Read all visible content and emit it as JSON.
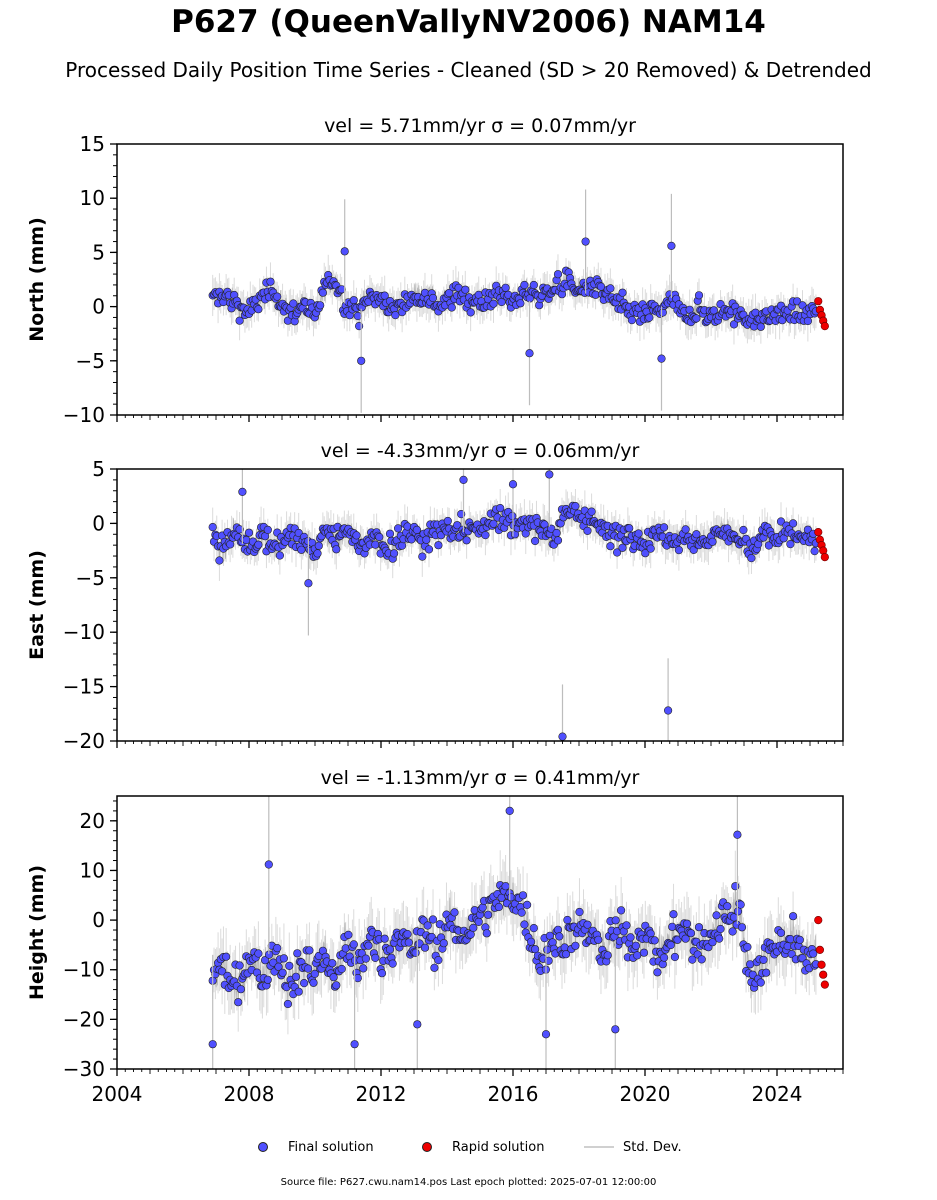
{
  "title": "P627 (QueenVallyNV2006) NAM14",
  "subtitle": "Processed Daily Position Time Series - Cleaned (SD > 20 Removed) & Detrended",
  "legend": {
    "final": "Final solution",
    "rapid": "Rapid solution",
    "stddev": "Std. Dev."
  },
  "footer": "Source file: P627.cwu.nam14.pos  Last epoch plotted: 2025-07-01 12:00:00",
  "colors": {
    "final": "#5050ff",
    "rapid": "#ee0000",
    "stddev": "#bdbdbd",
    "marker_edge": "#222222"
  },
  "chart_data": [
    {
      "type": "scatter",
      "panel": "north",
      "title": "vel = 5.71mm/yr   σ = 0.07mm/yr",
      "ylabel": "North (mm)",
      "xlabel": "",
      "xlim": [
        2004,
        2026
      ],
      "ylim": [
        -10,
        15
      ],
      "y_ticks": [
        -10,
        -5,
        0,
        5,
        10,
        15
      ],
      "x_ticks": [
        2004,
        2008,
        2012,
        2016,
        2020,
        2024
      ],
      "grid": false,
      "series": [
        {
          "name": "Final solution",
          "x": [
            2006.9,
            2007.2,
            2007.6,
            2008.0,
            2008.4,
            2008.8,
            2009.2,
            2009.6,
            2010.0,
            2010.3,
            2010.6,
            2010.9,
            2011.3,
            2011.7,
            2012.1,
            2012.5,
            2012.9,
            2013.3,
            2013.7,
            2014.1,
            2014.5,
            2014.9,
            2015.3,
            2015.7,
            2016.1,
            2016.4,
            2016.8,
            2017.2,
            2017.6,
            2018.0,
            2018.4,
            2018.8,
            2019.2,
            2019.6,
            2020.0,
            2020.4,
            2020.8,
            2021.2,
            2021.6,
            2022.0,
            2022.4,
            2022.8,
            2023.2,
            2023.6,
            2024.0,
            2024.4,
            2024.8,
            2025.2
          ],
          "y": [
            0.5,
            1.2,
            0.3,
            -0.5,
            0.8,
            1.5,
            -0.8,
            0.2,
            -1.2,
            1.8,
            2.5,
            0.4,
            -0.6,
            1.1,
            0.3,
            -0.4,
            0.9,
            1.3,
            0.2,
            0.7,
            1.1,
            0.5,
            0.8,
            1.2,
            0.3,
            1.4,
            0.9,
            1.8,
            2.2,
            1.5,
            1.9,
            1.0,
            0.2,
            -0.5,
            -0.8,
            -0.3,
            0.4,
            -0.6,
            -0.2,
            -0.9,
            -0.5,
            -0.4,
            -1.6,
            -1.0,
            -0.7,
            -0.5,
            -0.9,
            -0.4
          ]
        },
        {
          "name": "Rapid solution",
          "x": [
            2025.25,
            2025.3,
            2025.35,
            2025.4,
            2025.45
          ],
          "y": [
            0.5,
            -0.3,
            -0.8,
            -1.3,
            -1.8
          ]
        }
      ],
      "outliers_x": [
        2010.9,
        2011.4,
        2016.5,
        2018.2,
        2020.8,
        2020.5
      ],
      "outliers_y": [
        5.1,
        -5.0,
        -4.3,
        6.0,
        5.6,
        -4.8
      ]
    },
    {
      "type": "scatter",
      "panel": "east",
      "title": "vel = -4.33mm/yr   σ = 0.06mm/yr",
      "ylabel": "East (mm)",
      "xlabel": "",
      "xlim": [
        2004,
        2026
      ],
      "ylim": [
        -20,
        5
      ],
      "y_ticks": [
        -20,
        -15,
        -10,
        -5,
        0,
        5
      ],
      "x_ticks": [
        2004,
        2008,
        2012,
        2016,
        2020,
        2024
      ],
      "grid": false,
      "series": [
        {
          "name": "Final solution",
          "x": [
            2006.9,
            2007.2,
            2007.6,
            2008.0,
            2008.4,
            2008.8,
            2009.2,
            2009.6,
            2010.0,
            2010.3,
            2010.6,
            2010.9,
            2011.3,
            2011.7,
            2012.1,
            2012.5,
            2012.9,
            2013.3,
            2013.7,
            2014.1,
            2014.5,
            2014.9,
            2015.3,
            2015.7,
            2016.1,
            2016.4,
            2016.8,
            2017.2,
            2017.6,
            2018.0,
            2018.4,
            2018.8,
            2019.2,
            2019.6,
            2020.0,
            2020.4,
            2020.8,
            2021.2,
            2021.6,
            2022.0,
            2022.4,
            2022.8,
            2023.2,
            2023.6,
            2024.0,
            2024.4,
            2024.8,
            2025.2
          ],
          "y": [
            -1.5,
            -2.2,
            -0.8,
            -1.9,
            -1.0,
            -2.3,
            -1.2,
            -1.8,
            -2.5,
            -1.0,
            -1.6,
            -0.7,
            -2.0,
            -1.4,
            -2.2,
            -1.5,
            -0.9,
            -1.7,
            -0.5,
            -0.8,
            -0.3,
            -0.6,
            0.2,
            0.5,
            -0.4,
            0.3,
            -0.2,
            -1.5,
            0.6,
            1.0,
            0.4,
            -0.8,
            -1.4,
            -0.9,
            -1.9,
            -1.0,
            -1.5,
            -0.8,
            -2.1,
            -1.3,
            -0.6,
            -1.2,
            -2.5,
            -1.1,
            -1.6,
            -0.9,
            -1.4,
            -1.8
          ]
        },
        {
          "name": "Rapid solution",
          "x": [
            2025.25,
            2025.3,
            2025.35,
            2025.4,
            2025.45
          ],
          "y": [
            -0.8,
            -1.5,
            -2.0,
            -2.5,
            -3.1
          ]
        }
      ],
      "outliers_x": [
        2014.5,
        2016.0,
        2017.1,
        2017.5,
        2020.7,
        2009.8,
        2007.8
      ],
      "outliers_y": [
        4.0,
        3.6,
        4.5,
        -19.6,
        -17.2,
        -5.5,
        2.9
      ]
    },
    {
      "type": "scatter",
      "panel": "height",
      "title": "vel = -1.13mm/yr   σ = 0.41mm/yr",
      "ylabel": "Height (mm)",
      "xlabel": "",
      "xlim": [
        2004,
        2026
      ],
      "ylim": [
        -30,
        25
      ],
      "y_ticks": [
        -30,
        -20,
        -10,
        0,
        10,
        20
      ],
      "x_ticks": [
        2004,
        2008,
        2012,
        2016,
        2020,
        2024
      ],
      "x_tick_labels": [
        "2004",
        "2008",
        "2012",
        "2016",
        "2020",
        "2024"
      ],
      "grid": false,
      "series": [
        {
          "name": "Final solution",
          "x": [
            2006.9,
            2007.2,
            2007.6,
            2008.0,
            2008.4,
            2008.8,
            2009.2,
            2009.6,
            2010.0,
            2010.3,
            2010.6,
            2010.9,
            2011.3,
            2011.7,
            2012.1,
            2012.5,
            2012.9,
            2013.3,
            2013.7,
            2014.1,
            2014.5,
            2014.9,
            2015.3,
            2015.7,
            2016.1,
            2016.4,
            2016.8,
            2017.2,
            2017.6,
            2018.0,
            2018.4,
            2018.8,
            2019.2,
            2019.6,
            2020.0,
            2020.4,
            2020.8,
            2021.2,
            2021.6,
            2022.0,
            2022.4,
            2022.8,
            2023.2,
            2023.6,
            2024.0,
            2024.4,
            2024.8,
            2025.2
          ],
          "y": [
            -12,
            -9,
            -15,
            -8,
            -11,
            -6,
            -13,
            -9,
            -10,
            -7,
            -12,
            -5,
            -9,
            -4,
            -8,
            -3,
            -6,
            -2,
            -5,
            -1,
            -3,
            1,
            2,
            4,
            5,
            0,
            -8,
            -5,
            -3,
            -1,
            -4,
            -6,
            -2,
            -5,
            -3,
            -7,
            -4,
            -2,
            -6,
            -3,
            1,
            3,
            -12,
            -8,
            -5,
            -3,
            -7,
            -6
          ]
        },
        {
          "name": "Rapid solution",
          "x": [
            2025.25,
            2025.3,
            2025.35,
            2025.4,
            2025.45
          ],
          "y": [
            0,
            -6,
            -9,
            -11,
            -13
          ]
        }
      ],
      "outliers_x": [
        2015.9,
        2008.6,
        2011.2,
        2013.1,
        2017.0,
        2019.1,
        2022.8,
        2006.9
      ],
      "outliers_y": [
        22,
        11.2,
        -25,
        -21,
        -23,
        -22,
        17.2,
        -25
      ]
    }
  ]
}
